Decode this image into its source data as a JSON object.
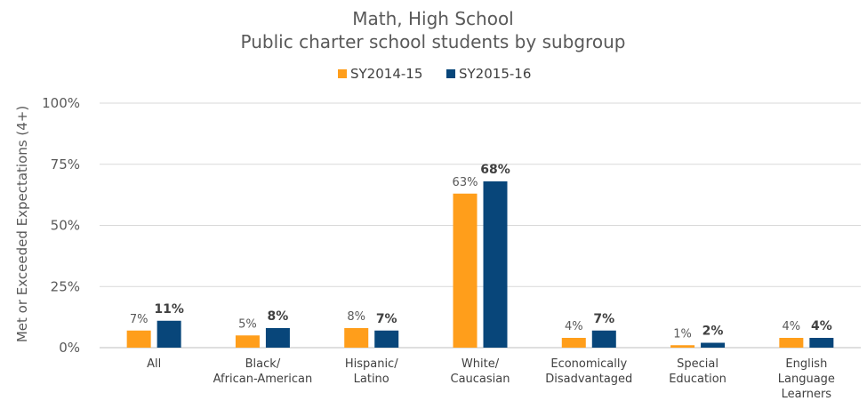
{
  "chart_data": {
    "type": "bar",
    "title": "Math, High School",
    "subtitle": "Public charter school students by subgroup",
    "ylabel": "Met or Exceeded Expectations (4+)",
    "xlabel": "",
    "ylim": [
      0,
      100
    ],
    "yticks": [
      "0%",
      "25%",
      "50%",
      "75%",
      "100%"
    ],
    "ytick_values": [
      0,
      25,
      50,
      75,
      100
    ],
    "grid": true,
    "legend_position": "top-center",
    "categories": [
      [
        "All"
      ],
      [
        "Black/",
        "African-American"
      ],
      [
        "Hispanic/",
        "Latino"
      ],
      [
        "White/",
        "Caucasian"
      ],
      [
        "Economically",
        "Disadvantaged"
      ],
      [
        "Special",
        "Education"
      ],
      [
        "English",
        "Language",
        "Learners"
      ]
    ],
    "series": [
      {
        "name": "SY2014-15",
        "color": "#FF9E1B",
        "values": [
          7,
          5,
          8,
          63,
          4,
          1,
          4
        ],
        "labels": [
          "7%",
          "5%",
          "8%",
          "63%",
          "4%",
          "1%",
          "4%"
        ]
      },
      {
        "name": "SY2015-16",
        "color": "#08467A",
        "values": [
          11,
          8,
          7,
          68,
          7,
          2,
          4
        ],
        "labels": [
          "11%",
          "8%",
          "7%",
          "68%",
          "7%",
          "2%",
          "4%"
        ]
      }
    ]
  }
}
